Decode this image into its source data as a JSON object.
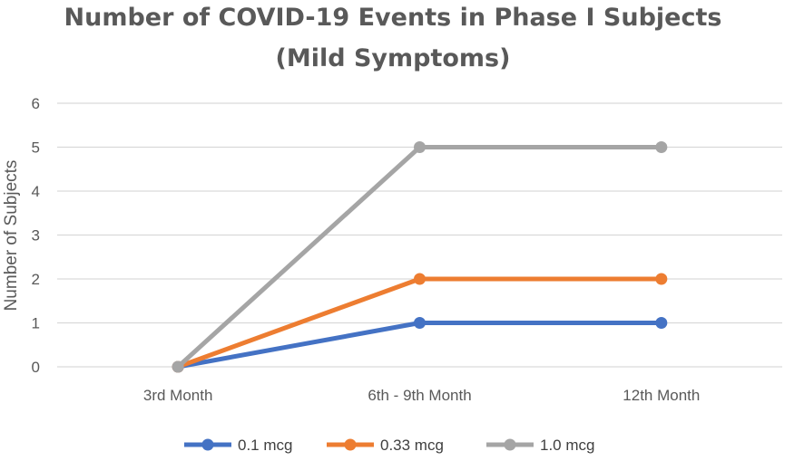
{
  "chart_data": {
    "type": "line",
    "title": "Number of COVID-19 Events in Phase I Subjects",
    "subtitle": "(Mild Symptoms)",
    "xlabel": "",
    "ylabel": "Number of Subjects",
    "categories": [
      "3rd Month",
      "6th - 9th Month",
      "12th Month"
    ],
    "ylim": [
      0,
      6
    ],
    "yticks": [
      0,
      1,
      2,
      3,
      4,
      5,
      6
    ],
    "grid": true,
    "legend_position": "bottom",
    "series": [
      {
        "name": "0.1 mcg",
        "color": "#4472c4",
        "values": [
          0,
          1,
          1
        ]
      },
      {
        "name": "0.33 mcg",
        "color": "#ed7d31",
        "values": [
          0,
          2,
          2
        ]
      },
      {
        "name": "1.0 mcg",
        "color": "#a5a5a5",
        "values": [
          0,
          5,
          5
        ]
      }
    ]
  }
}
